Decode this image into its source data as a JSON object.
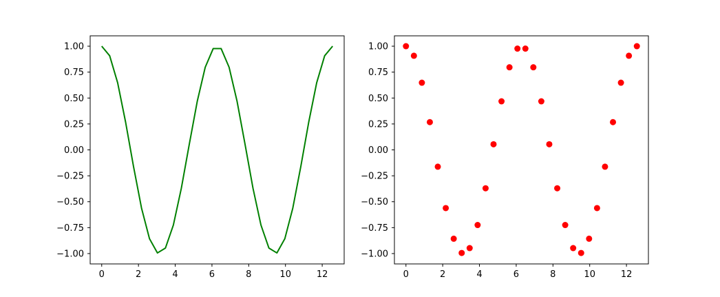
{
  "chart_data": [
    {
      "type": "line",
      "title": "",
      "xlabel": "",
      "ylabel": "",
      "xlim": [
        -0.628,
        13.195
      ],
      "ylim": [
        -1.0999,
        1.0999
      ],
      "xticks": [
        0,
        2,
        4,
        6,
        8,
        10,
        12
      ],
      "xtick_labels": [
        "0",
        "2",
        "4",
        "6",
        "8",
        "10",
        "12"
      ],
      "yticks": [
        1.0,
        0.75,
        0.5,
        0.25,
        0.0,
        -0.25,
        -0.5,
        -0.75,
        -1.0
      ],
      "ytick_labels": [
        "1.00",
        "0.75",
        "0.50",
        "0.25",
        "0.00",
        "−0.25",
        "−0.50",
        "−0.75",
        "−1.00"
      ],
      "grid": false,
      "color": "#008000",
      "series": [
        {
          "x": [
            0,
            0.4333,
            0.8666,
            1.3,
            1.7333,
            2.1666,
            2.5999,
            3.0333,
            3.4666,
            3.8999,
            4.3332,
            4.7665,
            5.1999,
            5.6332,
            6.0665,
            6.4998,
            6.9331,
            7.3665,
            7.7998,
            8.2331,
            8.6664,
            9.0997,
            9.5331,
            9.9664,
            10.3997,
            10.833,
            11.2663,
            11.6997,
            12.133,
            12.5664
          ],
          "y": [
            1.0,
            0.9076,
            0.6476,
            0.2675,
            -0.1622,
            -0.5613,
            -0.8568,
            -0.9941,
            -0.9472,
            -0.7248,
            -0.3701,
            0.0541,
            0.4684,
            0.7965,
            0.9766,
            0.9766,
            0.7965,
            0.4684,
            0.0541,
            -0.3701,
            -0.7248,
            -0.9472,
            -0.9941,
            -0.8568,
            -0.5613,
            -0.1622,
            0.2675,
            0.6476,
            0.9076,
            1.0
          ]
        }
      ]
    },
    {
      "type": "scatter",
      "title": "",
      "xlabel": "",
      "ylabel": "",
      "xlim": [
        -0.628,
        13.195
      ],
      "ylim": [
        -1.0999,
        1.0999
      ],
      "xticks": [
        0,
        2,
        4,
        6,
        8,
        10,
        12
      ],
      "xtick_labels": [
        "0",
        "2",
        "4",
        "6",
        "8",
        "10",
        "12"
      ],
      "yticks": [
        1.0,
        0.75,
        0.5,
        0.25,
        0.0,
        -0.25,
        -0.5,
        -0.75,
        -1.0
      ],
      "ytick_labels": [
        "1.00",
        "0.75",
        "0.50",
        "0.25",
        "0.00",
        "−0.25",
        "−0.50",
        "−0.75",
        "−1.00"
      ],
      "grid": false,
      "color": "#ff0000",
      "series": [
        {
          "x": [
            0,
            0.4333,
            0.8666,
            1.3,
            1.7333,
            2.1666,
            2.5999,
            3.0333,
            3.4666,
            3.8999,
            4.3332,
            4.7665,
            5.1999,
            5.6332,
            6.0665,
            6.4998,
            6.9331,
            7.3665,
            7.7998,
            8.2331,
            8.6664,
            9.0997,
            9.5331,
            9.9664,
            10.3997,
            10.833,
            11.2663,
            11.6997,
            12.133,
            12.5664
          ],
          "y": [
            1.0,
            0.9076,
            0.6476,
            0.2675,
            -0.1622,
            -0.5613,
            -0.8568,
            -0.9941,
            -0.9472,
            -0.7248,
            -0.3701,
            0.0541,
            0.4684,
            0.7965,
            0.9766,
            0.9766,
            0.7965,
            0.4684,
            0.0541,
            -0.3701,
            -0.7248,
            -0.9472,
            -0.9941,
            -0.8568,
            -0.5613,
            -0.1622,
            0.2675,
            0.6476,
            0.9076,
            1.0
          ]
        }
      ]
    }
  ]
}
